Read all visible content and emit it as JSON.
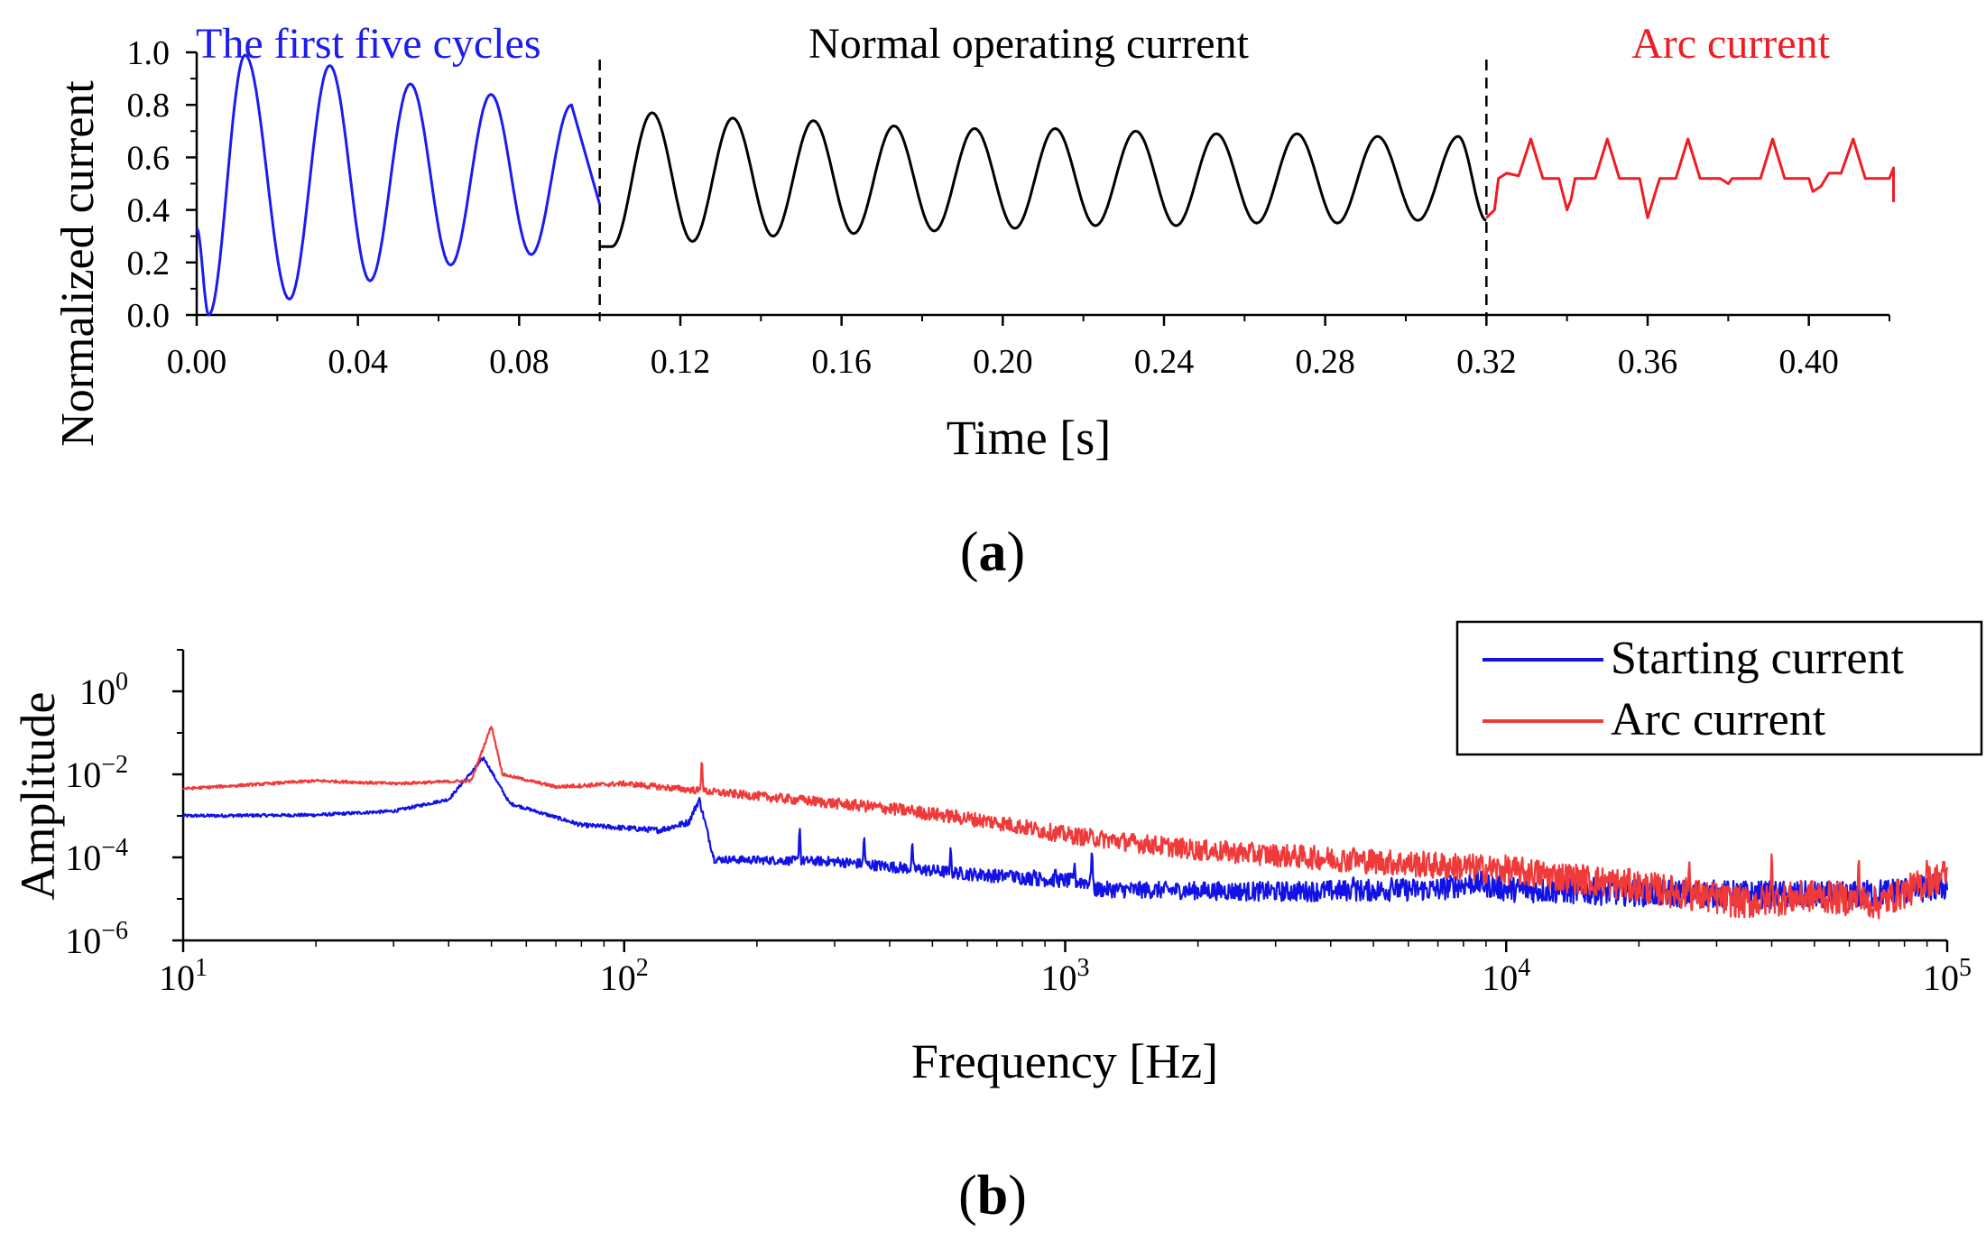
{
  "colors": {
    "blue": "#1c1cf0",
    "black": "#000000",
    "red": "#f01c24",
    "red_spectrum": "#f03a3a",
    "blue_spectrum": "#1212e6"
  },
  "chart_data": [
    {
      "panel": "(a)",
      "panel_letter": "a",
      "type": "line",
      "title": "",
      "xlabel": "Time [s]",
      "ylabel": "Normalized current",
      "xlim": [
        0,
        0.42
      ],
      "ylim": [
        0,
        1.0
      ],
      "x_ticks": [
        0,
        0.04,
        0.08,
        0.12,
        0.16,
        0.2,
        0.24,
        0.28,
        0.32,
        0.36,
        0.4
      ],
      "x_tick_labels": [
        "0.00",
        "0.04",
        "0.08",
        "0.12",
        "0.16",
        "0.20",
        "0.24",
        "0.28",
        "0.32",
        "0.36",
        "0.40"
      ],
      "y_ticks": [
        0,
        0.2,
        0.4,
        0.6,
        0.8,
        1.0
      ],
      "y_tick_labels": [
        "0.0",
        "0.2",
        "0.4",
        "0.6",
        "0.8",
        "1.0"
      ],
      "dividers": [
        0.1,
        0.32
      ],
      "annotations": [
        {
          "text": "The first five cycles",
          "color": "blue"
        },
        {
          "text": "Normal operating current",
          "color": "black"
        },
        {
          "text": "Arc current",
          "color": "red"
        }
      ],
      "series": [
        {
          "name": "The first five cycles",
          "color": "blue",
          "x_range": [
            0.0,
            0.1
          ],
          "peaks": [
            [
              0.012,
              0.99
            ],
            [
              0.033,
              0.95
            ],
            [
              0.053,
              0.88
            ],
            [
              0.073,
              0.84
            ],
            [
              0.093,
              0.8
            ]
          ],
          "troughs": [
            [
              0.003,
              0.0
            ],
            [
              0.023,
              0.06
            ],
            [
              0.043,
              0.13
            ],
            [
              0.063,
              0.19
            ],
            [
              0.083,
              0.23
            ]
          ]
        },
        {
          "name": "Normal operating current",
          "color": "black",
          "x_range": [
            0.1,
            0.32
          ],
          "peaks": [
            [
              0.113,
              0.77
            ],
            [
              0.133,
              0.75
            ],
            [
              0.153,
              0.74
            ],
            [
              0.173,
              0.72
            ],
            [
              0.193,
              0.71
            ],
            [
              0.213,
              0.71
            ],
            [
              0.233,
              0.7
            ],
            [
              0.253,
              0.69
            ],
            [
              0.273,
              0.69
            ],
            [
              0.293,
              0.68
            ],
            [
              0.313,
              0.68
            ]
          ],
          "troughs": [
            [
              0.103,
              0.26
            ],
            [
              0.123,
              0.28
            ],
            [
              0.143,
              0.3
            ],
            [
              0.163,
              0.31
            ],
            [
              0.183,
              0.32
            ],
            [
              0.203,
              0.33
            ],
            [
              0.223,
              0.34
            ],
            [
              0.243,
              0.34
            ],
            [
              0.263,
              0.35
            ],
            [
              0.283,
              0.35
            ],
            [
              0.303,
              0.36
            ],
            [
              0.32,
              0.36
            ]
          ]
        },
        {
          "name": "Arc current",
          "color": "red",
          "x_range": [
            0.32,
            0.42
          ],
          "baseline": 0.52,
          "points": [
            [
              0.32,
              0.37
            ],
            [
              0.322,
              0.4
            ],
            [
              0.323,
              0.52
            ],
            [
              0.325,
              0.54
            ],
            [
              0.328,
              0.53
            ],
            [
              0.331,
              0.67
            ],
            [
              0.334,
              0.52
            ],
            [
              0.338,
              0.52
            ],
            [
              0.34,
              0.4
            ],
            [
              0.341,
              0.44
            ],
            [
              0.342,
              0.52
            ],
            [
              0.347,
              0.52
            ],
            [
              0.35,
              0.67
            ],
            [
              0.353,
              0.52
            ],
            [
              0.358,
              0.52
            ],
            [
              0.36,
              0.37
            ],
            [
              0.362,
              0.47
            ],
            [
              0.363,
              0.52
            ],
            [
              0.367,
              0.52
            ],
            [
              0.37,
              0.67
            ],
            [
              0.373,
              0.52
            ],
            [
              0.378,
              0.52
            ],
            [
              0.38,
              0.5
            ],
            [
              0.381,
              0.52
            ],
            [
              0.388,
              0.52
            ],
            [
              0.391,
              0.67
            ],
            [
              0.394,
              0.52
            ],
            [
              0.4,
              0.52
            ],
            [
              0.401,
              0.47
            ],
            [
              0.403,
              0.49
            ],
            [
              0.405,
              0.54
            ],
            [
              0.408,
              0.54
            ],
            [
              0.411,
              0.67
            ],
            [
              0.414,
              0.52
            ],
            [
              0.42,
              0.52
            ],
            [
              0.421,
              0.56
            ],
            [
              0.421,
              0.43
            ]
          ]
        }
      ]
    },
    {
      "panel": "(b)",
      "panel_letter": "b",
      "type": "line",
      "title": "",
      "xlabel": "Frequency [Hz]",
      "ylabel": "Amplitude",
      "xscale": "log",
      "yscale": "log",
      "xlim": [
        10,
        100000
      ],
      "ylim": [
        1e-06,
        10
      ],
      "x_ticks": [
        10,
        100,
        1000,
        10000,
        100000
      ],
      "x_tick_base": "10",
      "x_tick_exponents": [
        "1",
        "2",
        "3",
        "4",
        "5"
      ],
      "y_ticks": [
        1,
        0.01,
        0.0001,
        1e-06
      ],
      "y_tick_base": "10",
      "y_tick_exponents": [
        "0",
        "−2",
        "−4",
        "−6"
      ],
      "legend": {
        "position": "top-right",
        "entries": [
          "Starting current",
          "Arc current"
        ]
      },
      "series": [
        {
          "name": "Starting current",
          "color": "blue_spectrum",
          "envelope": [
            [
              10,
              0.001
            ],
            [
              20,
              0.00105
            ],
            [
              30,
              0.0013
            ],
            [
              40,
              0.0025
            ],
            [
              48,
              0.025
            ],
            [
              55,
              0.002
            ],
            [
              80,
              0.0006
            ],
            [
              120,
              0.00045
            ],
            [
              140,
              0.0007
            ],
            [
              148,
              0.0025
            ],
            [
              160,
              9e-05
            ],
            [
              300,
              8e-05
            ],
            [
              600,
              4e-05
            ],
            [
              1150,
              2.5e-05
            ],
            [
              1160,
              1.7e-05
            ],
            [
              3000,
              1.5e-05
            ],
            [
              7000,
              1.7e-05
            ],
            [
              8500,
              2.5e-05
            ],
            [
              10000,
              1.7e-05
            ],
            [
              30000,
              1.3e-05
            ],
            [
              60000,
              1.2e-05
            ],
            [
              100000,
              2e-05
            ]
          ],
          "harmonic_peaks": [
            [
              250,
              0.0007
            ],
            [
              350,
              0.0004
            ],
            [
              450,
              0.0003
            ],
            [
              550,
              0.0002
            ],
            [
              650,
              5e-05
            ],
            [
              750,
              5e-05
            ],
            [
              850,
              5e-05
            ],
            [
              950,
              6e-05
            ],
            [
              1050,
              8e-05
            ],
            [
              1150,
              0.0002
            ],
            [
              4500,
              4e-05
            ],
            [
              5500,
              3.5e-05
            ]
          ]
        },
        {
          "name": "Arc current",
          "color": "red_spectrum",
          "envelope": [
            [
              10,
              0.0045
            ],
            [
              20,
              0.007
            ],
            [
              30,
              0.006
            ],
            [
              45,
              0.007
            ],
            [
              50,
              0.15
            ],
            [
              53,
              0.01
            ],
            [
              70,
              0.005
            ],
            [
              100,
              0.006
            ],
            [
              150,
              0.004
            ],
            [
              200,
              0.003
            ],
            [
              400,
              0.0015
            ],
            [
              700,
              0.0007
            ],
            [
              1000,
              0.00035
            ],
            [
              2000,
              0.00015
            ],
            [
              5000,
              8e-05
            ],
            [
              10000,
              5e-05
            ],
            [
              20000,
              2e-05
            ],
            [
              35000,
              8e-06
            ],
            [
              50000,
              1.2e-05
            ],
            [
              70000,
              8e-06
            ],
            [
              100000,
              4e-05
            ]
          ],
          "harmonic_peaks": [
            [
              150,
              0.03
            ],
            [
              250,
              0.003
            ],
            [
              350,
              0.002
            ],
            [
              450,
              0.0015
            ],
            [
              550,
              0.0008
            ],
            [
              4500,
              0.0002
            ],
            [
              26000,
              0.0001
            ],
            [
              40000,
              0.0002
            ],
            [
              63000,
              0.00015
            ],
            [
              90000,
              0.0001
            ]
          ]
        }
      ]
    }
  ]
}
